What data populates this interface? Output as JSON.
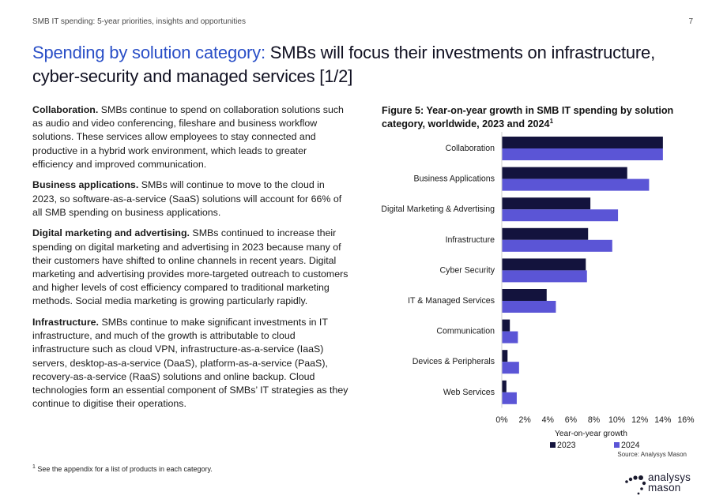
{
  "header": {
    "running_title": "SMB IT spending: 5-year priorities, insights and opportunities",
    "page_number": "7"
  },
  "title": {
    "accent": "Spending by solution category:",
    "rest": " SMBs will focus their investments on infrastructure, cyber-security and managed services [1/2]"
  },
  "paragraphs": [
    {
      "heading": "Collaboration.",
      "text": " SMBs continue to spend on collaboration solutions such as audio and video conferencing, fileshare and business workflow solutions. These services allow employees to stay connected and productive in a hybrid work environment, which leads to greater efficiency and improved communication."
    },
    {
      "heading": "Business applications.",
      "text": " SMBs will continue to move to the cloud in 2023, so software-as-a-service (SaaS) solutions will account for 66% of all SMB spending on business applications."
    },
    {
      "heading": "Digital marketing and advertising.",
      "text": " SMBs continued to increase their spending on digital marketing and advertising in 2023 because many of their customers have shifted to online channels in recent years. Digital marketing and advertising provides more-targeted outreach to customers and higher levels of cost efficiency compared to traditional marketing methods. Social media marketing is growing particularly rapidly."
    },
    {
      "heading": "Infrastructure.",
      "text": " SMBs continue to make significant investments in IT infrastructure, and much of the growth is attributable to cloud infrastructure such as cloud VPN, infrastructure-as-a-service (IaaS) servers, desktop-as-a-service (DaaS), platform-as-a-service (PaaS), recovery-as-a-service (RaaS) solutions and online backup. Cloud technologies form an essential component of SMBs’ IT strategies as they continue to digitise their operations."
    }
  ],
  "figure": {
    "caption": "Figure 5: Year-on-year growth in SMB IT spending by solution category, worldwide, 2023 and 2024",
    "caption_sup": "1"
  },
  "chart_data": {
    "type": "bar",
    "orientation": "horizontal",
    "categories": [
      "Collaboration",
      "Business Applications",
      "Digital Marketing & Advertising",
      "Infrastructure",
      "Cyber Security",
      "IT & Managed Services",
      "Communication",
      "Devices & Peripherals",
      "Web Services"
    ],
    "series": [
      {
        "name": "2023",
        "color": "#13133d",
        "values": [
          14.0,
          10.9,
          7.7,
          7.5,
          7.3,
          3.9,
          0.7,
          0.5,
          0.4
        ]
      },
      {
        "name": "2024",
        "color": "#5b55d6",
        "values": [
          14.0,
          12.8,
          10.1,
          9.6,
          7.4,
          4.7,
          1.4,
          1.5,
          1.3
        ]
      }
    ],
    "xlim": [
      0,
      16
    ],
    "xticks": [
      "0%",
      "2%",
      "4%",
      "6%",
      "8%",
      "10%",
      "12%",
      "14%",
      "16%"
    ],
    "xlabel": "Year-on-year growth",
    "ylabel": "",
    "legend_position": "bottom",
    "source": "Source: Analysys Mason"
  },
  "footnote": {
    "sup": "1",
    "text": " See the appendix for a list of products in each category."
  },
  "logo": {
    "line1": "analysys",
    "line2": "mason"
  }
}
